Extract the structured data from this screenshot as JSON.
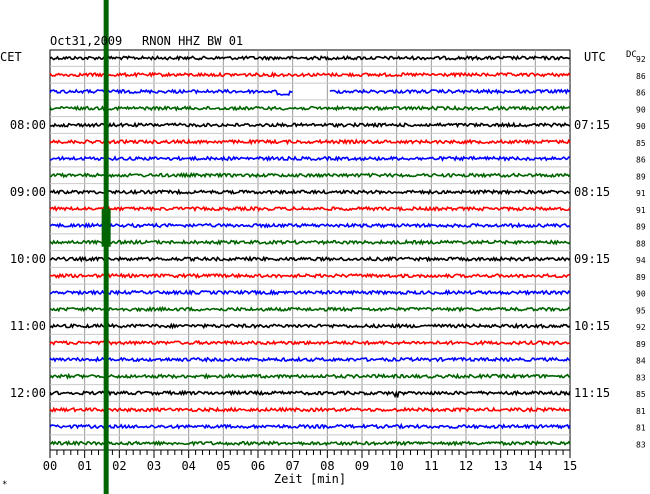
{
  "header": {
    "date": "Oct31,2009",
    "station": "RNON HHZ BW 01",
    "left_zone": "CET",
    "right_zone": "UTC",
    "dc_label": "DC"
  },
  "footer": {
    "xlabel": "Zeit [min]",
    "corner_mark": "*"
  },
  "chart_data": {
    "type": "line",
    "title": "Oct31,2009 RNON HHZ BW 01",
    "xlabel": "Zeit [min]",
    "ylabel": "",
    "xlim": [
      0,
      15
    ],
    "x_ticks": [
      "00",
      "01",
      "02",
      "03",
      "04",
      "05",
      "06",
      "07",
      "08",
      "09",
      "10",
      "11",
      "12",
      "13",
      "14",
      "15"
    ],
    "grid": true,
    "trace_colors": [
      "#000000",
      "#ff0000",
      "#0000ff",
      "#006400"
    ],
    "left_time_labels": [
      "08:00",
      "09:00",
      "10:00",
      "11:00",
      "12:00"
    ],
    "right_time_labels": [
      "07:15",
      "08:15",
      "09:15",
      "10:15",
      "11:15"
    ],
    "dc_values": [
      "92",
      "86",
      "86",
      "90",
      "90",
      "85",
      "86",
      "89",
      "91",
      "91",
      "89",
      "88",
      "94",
      "89",
      "90",
      "95",
      "92",
      "89",
      "84",
      "83",
      "85",
      "81",
      "81",
      "83"
    ],
    "event_marker": {
      "color": "#006400",
      "minute": 1.62
    },
    "features": [
      {
        "trace": 2,
        "type": "gap",
        "from": 7.0,
        "to": 8.05
      },
      {
        "trace": 2,
        "type": "offset",
        "from": 6.55,
        "to": 6.9
      },
      {
        "trace": 20,
        "type": "spike",
        "at": 10.0
      }
    ]
  }
}
